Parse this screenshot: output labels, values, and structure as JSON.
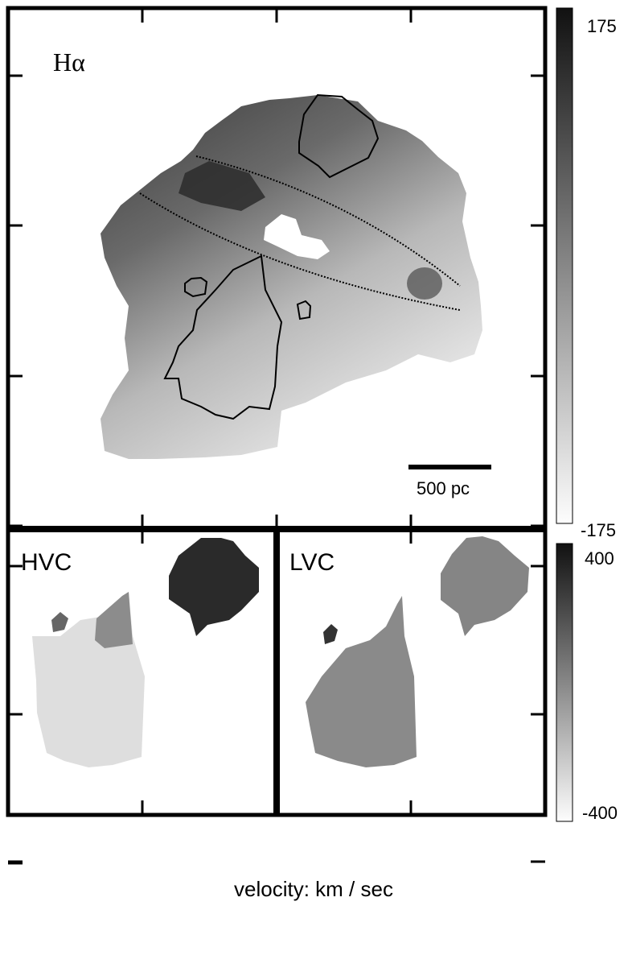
{
  "panels": {
    "halpha": {
      "label": "Hα",
      "scale_bar_label": "500 pc"
    },
    "hvc": {
      "label": "HVC"
    },
    "lvc": {
      "label": "LVC"
    }
  },
  "colorbars": {
    "top": {
      "max_label": "175",
      "min_label": "-175"
    },
    "bottom": {
      "max_label": "400",
      "min_label": "-400"
    }
  },
  "footer": {
    "caption": "velocity:  km / sec"
  },
  "colors": {
    "frame": "#000000",
    "map_gray": "#8a8a8a",
    "dark": "#2a2a2a",
    "light": "#e4e4e4"
  }
}
